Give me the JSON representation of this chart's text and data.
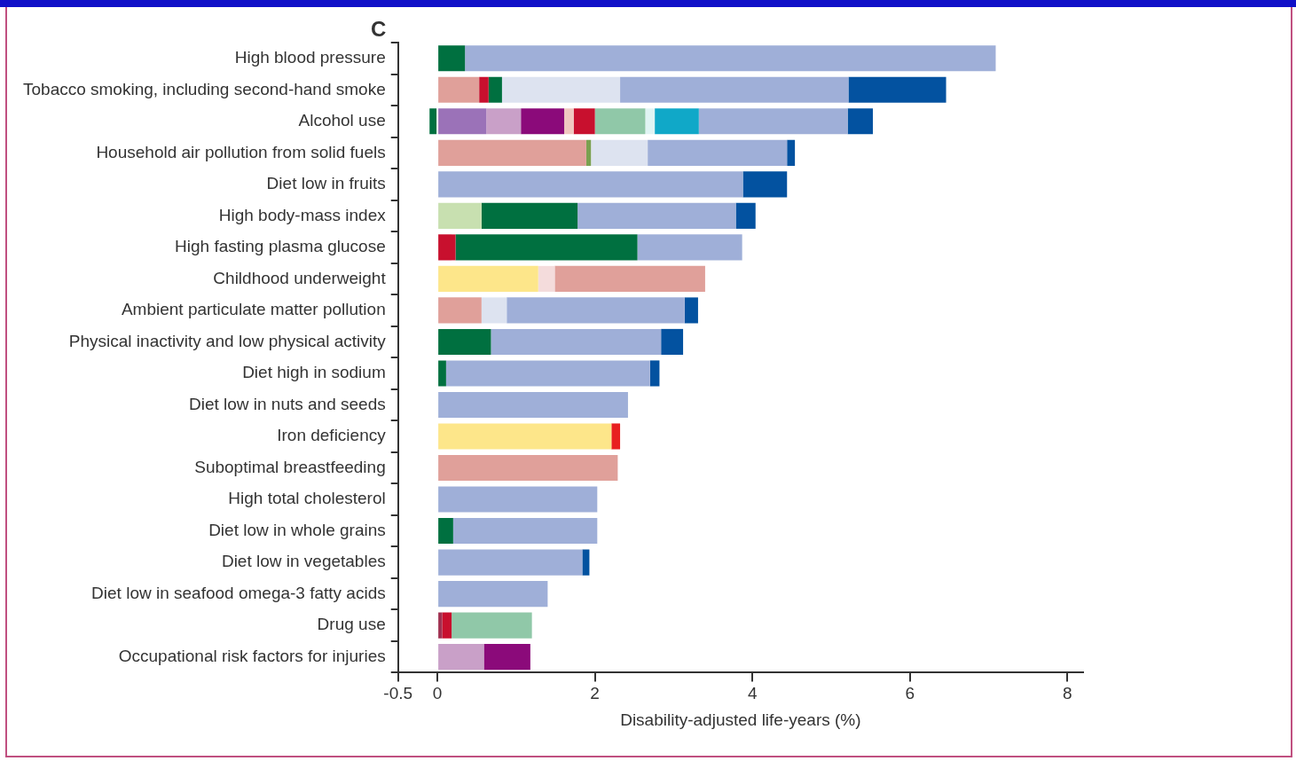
{
  "chart_data": {
    "type": "bar",
    "orientation": "horizontal",
    "stacked": true,
    "title": "C",
    "xlabel": "Disability-adjusted life-years (%)",
    "categories": [
      "High blood pressure",
      "Tobacco smoking, including second-hand smoke",
      "Alcohol use",
      "Household air pollution from solid fuels",
      "Diet low in fruits",
      "High body-mass index",
      "High fasting plasma glucose",
      "Childhood underweight",
      "Ambient particulate matter pollution",
      "Physical inactivity and low physical activity",
      "Diet high in sodium",
      "Diet low in nuts and seeds",
      "Iron deficiency",
      "Suboptimal breastfeeding",
      "High total cholesterol",
      "Diet low in whole grains",
      "Diet low in vegetables",
      "Diet low in seafood omega-3 fatty acids",
      "Drug use",
      "Occupational risk factors for injuries"
    ],
    "series": [
      {
        "values": [
          null,
          null,
          -0.1,
          null,
          null,
          null,
          null,
          null,
          null,
          null,
          null,
          null,
          null,
          null,
          null,
          null,
          null,
          null,
          null,
          null
        ],
        "colors": [
          null,
          null,
          "#007040",
          null,
          null,
          null,
          null,
          null,
          null,
          null,
          null,
          null,
          null,
          null,
          null,
          null,
          null,
          null,
          null,
          null
        ]
      },
      {
        "values": [
          0.35,
          0.53,
          0.62,
          1.89,
          3.88,
          0.56,
          0.23,
          1.28,
          0.56,
          0.68,
          0.11,
          2.42,
          2.21,
          2.29,
          2.03,
          0.2,
          1.84,
          1.4,
          0.06,
          0.59
        ],
        "colors": [
          "#007040",
          "#e0a09a",
          "#9b72b8",
          "#e0a09a",
          "#9fafd8",
          "#c8e0b0",
          "#c8102e",
          "#fde68a",
          "#e0a09a",
          "#007040",
          "#007040",
          "#9fafd8",
          "#fde68a",
          "#e0a09a",
          "#9fafd8",
          "#007040",
          "#9fafd8",
          "#9fafd8",
          "#a03050",
          "#c9a0c8"
        ]
      },
      {
        "values": [
          6.74,
          0.12,
          0.44,
          0.06,
          0.56,
          1.22,
          2.31,
          0.21,
          0.32,
          2.16,
          2.59,
          null,
          0.11,
          null,
          null,
          1.83,
          0.09,
          null,
          0.12,
          0.59
        ],
        "colors": [
          "#9fafd8",
          "#c8102e",
          "#c9a0c8",
          "#7aa050",
          "#0352a0",
          "#007040",
          "#007040",
          "#f4dcdc",
          "#dde3f0",
          "#9fafd8",
          "#9fafd8",
          null,
          "#e82020",
          null,
          null,
          "#9fafd8",
          "#0352a0",
          null,
          "#c8102e",
          "#8b0a7a"
        ]
      },
      {
        "values": [
          null,
          0.17,
          0.55,
          0.72,
          null,
          2.01,
          1.33,
          1.91,
          2.26,
          0.28,
          0.12,
          null,
          null,
          null,
          null,
          null,
          null,
          null,
          1.02,
          null
        ],
        "colors": [
          null,
          "#007040",
          "#8b0a7a",
          "#dde3f0",
          null,
          "#9fafd8",
          "#9fafd8",
          "#e0a09a",
          "#9fafd8",
          "#0352a0",
          "#0352a0",
          null,
          null,
          null,
          null,
          null,
          null,
          null,
          "#90c8a8",
          null
        ]
      },
      {
        "values": [
          null,
          1.5,
          0.12,
          1.77,
          null,
          0.25,
          null,
          null,
          0.17,
          null,
          null,
          null,
          null,
          null,
          null,
          null,
          null,
          null,
          null,
          null
        ],
        "colors": [
          null,
          "#dde3f0",
          "#f0c8c0",
          "#9fafd8",
          null,
          "#0352a0",
          null,
          null,
          "#0352a0",
          null,
          null,
          null,
          null,
          null,
          null,
          null,
          null,
          null,
          null,
          null
        ]
      },
      {
        "values": [
          null,
          2.9,
          0.27,
          0.1,
          null,
          null,
          null,
          null,
          null,
          null,
          null,
          null,
          null,
          null,
          null,
          null,
          null,
          null,
          null,
          null
        ],
        "colors": [
          null,
          "#9fafd8",
          "#c8102e",
          "#0352a0",
          null,
          null,
          null,
          null,
          null,
          null,
          null,
          null,
          null,
          null,
          null,
          null,
          null,
          null,
          null,
          null
        ]
      },
      {
        "values": [
          null,
          1.24,
          0.64,
          null,
          null,
          null,
          null,
          null,
          null,
          null,
          null,
          null,
          null,
          null,
          null,
          null,
          null,
          null,
          null,
          null
        ],
        "colors": [
          null,
          "#0352a0",
          "#90c8a8",
          null,
          null,
          null,
          null,
          null,
          null,
          null,
          null,
          null,
          null,
          null,
          null,
          null,
          null,
          null,
          null,
          null
        ]
      },
      {
        "values": [
          null,
          null,
          0.12,
          null,
          null,
          null,
          null,
          null,
          null,
          null,
          null,
          null,
          null,
          null,
          null,
          null,
          null,
          null,
          null,
          null
        ],
        "colors": [
          null,
          null,
          "#e0f4f4",
          null,
          null,
          null,
          null,
          null,
          null,
          null,
          null,
          null,
          null,
          null,
          null,
          null,
          null,
          null,
          null,
          null
        ]
      },
      {
        "values": [
          null,
          null,
          0.56,
          null,
          null,
          null,
          null,
          null,
          null,
          null,
          null,
          null,
          null,
          null,
          null,
          null,
          null,
          null,
          null,
          null
        ],
        "colors": [
          null,
          null,
          "#10a8c8",
          null,
          null,
          null,
          null,
          null,
          null,
          null,
          null,
          null,
          null,
          null,
          null,
          null,
          null,
          null,
          null,
          null
        ]
      },
      {
        "values": [
          null,
          null,
          1.89,
          null,
          null,
          null,
          null,
          null,
          null,
          null,
          null,
          null,
          null,
          null,
          null,
          null,
          null,
          null,
          null,
          null
        ],
        "colors": [
          null,
          null,
          "#9fafd8",
          null,
          null,
          null,
          null,
          null,
          null,
          null,
          null,
          null,
          null,
          null,
          null,
          null,
          null,
          null,
          null,
          null
        ]
      },
      {
        "values": [
          null,
          null,
          0.32,
          null,
          null,
          null,
          null,
          null,
          null,
          null,
          null,
          null,
          null,
          null,
          null,
          null,
          null,
          null,
          null,
          null
        ],
        "colors": [
          null,
          null,
          "#0352a0",
          null,
          null,
          null,
          null,
          null,
          null,
          null,
          null,
          null,
          null,
          null,
          null,
          null,
          null,
          null,
          null,
          null
        ]
      }
    ],
    "xlim": [
      -0.5,
      8.2
    ],
    "xticks": [
      -0.5,
      0,
      2,
      4,
      6,
      8
    ]
  }
}
